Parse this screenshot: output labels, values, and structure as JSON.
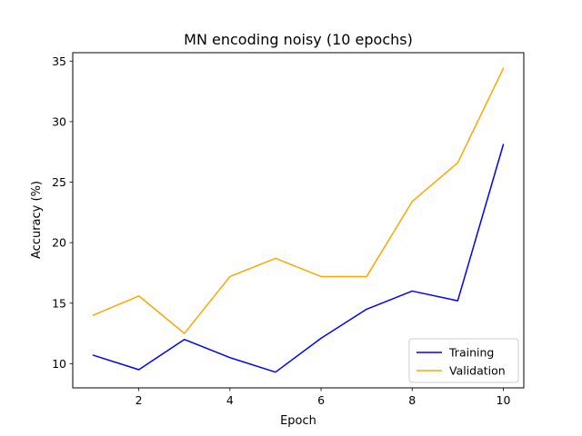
{
  "chart_data": {
    "type": "line",
    "title": "MN encoding noisy (10 epochs)",
    "xlabel": "Epoch",
    "ylabel": "Accuracy (%)",
    "x": [
      1,
      2,
      3,
      4,
      5,
      6,
      7,
      8,
      9,
      10
    ],
    "xlim": [
      0.55,
      10.45
    ],
    "ylim": [
      8.0,
      35.7
    ],
    "xticks": [
      2,
      4,
      6,
      8,
      10
    ],
    "yticks": [
      10,
      15,
      20,
      25,
      30,
      35
    ],
    "grid": false,
    "legend_position": "lower-right",
    "series": [
      {
        "name": "Training",
        "color": "#0000ff",
        "values": [
          10.7,
          9.5,
          12.0,
          10.5,
          9.3,
          12.1,
          14.5,
          16.0,
          15.2,
          28.1
        ]
      },
      {
        "name": "Validation",
        "color": "#ffa500",
        "values": [
          14.0,
          15.6,
          12.5,
          17.2,
          18.7,
          17.2,
          17.2,
          23.4,
          26.6,
          34.4
        ]
      }
    ]
  }
}
